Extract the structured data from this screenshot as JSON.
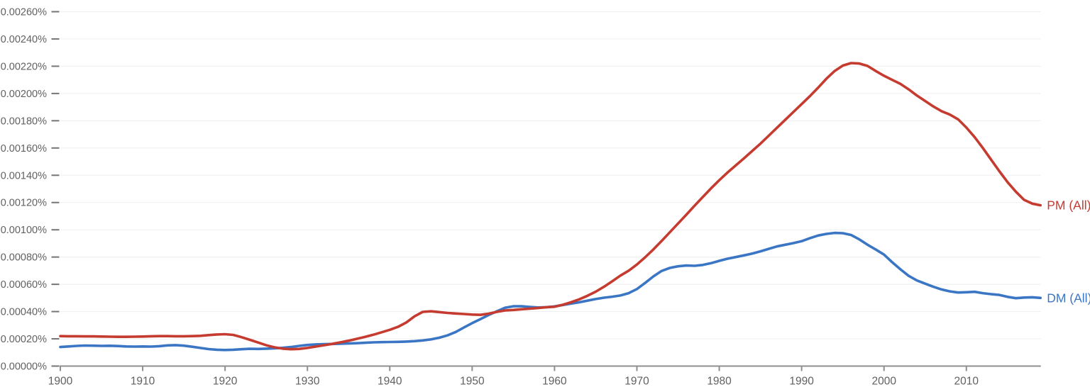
{
  "chart_data": {
    "type": "line",
    "title": "",
    "xlabel": "",
    "ylabel": "",
    "y_unit": "1e-5 percent (value 20 = 0.00020%)",
    "ylim_units": [
      0,
      260
    ],
    "x_range": [
      1900,
      2019
    ],
    "grid": "horizontal-light",
    "legend_position": "line-end-labels-right",
    "y_ticks": [
      "0.00000%",
      "0.00020%",
      "0.00040%",
      "0.00060%",
      "0.00080%",
      "0.00100%",
      "0.00120%",
      "0.00140%",
      "0.00160%",
      "0.00180%",
      "0.00200%",
      "0.00220%",
      "0.00240%",
      "0.00260%"
    ],
    "x_ticks": [
      "1900",
      "1910",
      "1920",
      "1930",
      "1940",
      "1950",
      "1960",
      "1970",
      "1980",
      "1990",
      "2000",
      "2010"
    ],
    "x_tick_years": [
      1900,
      1910,
      1920,
      1930,
      1940,
      1950,
      1960,
      1970,
      1980,
      1990,
      2000,
      2010
    ],
    "years_start": 1900,
    "series": [
      {
        "name": "DM (All)",
        "color": "#3b76c5",
        "values_1e5_percent": [
          14.0,
          14.4,
          14.8,
          15.1,
          15.0,
          14.8,
          14.9,
          14.7,
          14.4,
          14.3,
          14.4,
          14.3,
          14.6,
          15.2,
          15.4,
          15.0,
          14.2,
          13.3,
          12.5,
          12.0,
          11.8,
          12.0,
          12.4,
          12.7,
          12.6,
          12.8,
          13.0,
          13.4,
          14.0,
          14.8,
          15.5,
          15.9,
          16.1,
          16.2,
          16.4,
          16.6,
          16.8,
          17.1,
          17.4,
          17.6,
          17.7,
          17.8,
          18.0,
          18.3,
          18.8,
          19.6,
          20.8,
          22.5,
          25.0,
          28.3,
          31.5,
          34.5,
          37.5,
          40.2,
          42.8,
          43.9,
          43.9,
          43.4,
          43.0,
          43.2,
          43.8,
          44.8,
          45.8,
          46.8,
          48.0,
          49.2,
          50.2,
          50.9,
          51.8,
          53.5,
          56.5,
          61.0,
          65.8,
          69.8,
          72.0,
          73.2,
          73.8,
          73.6,
          74.2,
          75.5,
          77.2,
          78.8,
          80.0,
          81.2,
          82.6,
          84.2,
          86.0,
          87.8,
          89.0,
          90.2,
          91.6,
          93.8,
          95.8,
          97.0,
          97.7,
          97.5,
          96.2,
          93.0,
          89.0,
          85.5,
          81.8,
          76.2,
          71.0,
          66.2,
          62.8,
          60.5,
          58.2,
          56.2,
          54.8,
          54.0,
          54.2,
          54.5,
          53.5,
          52.8,
          52.2,
          50.8,
          49.8,
          50.3,
          50.5,
          50.0
        ]
      },
      {
        "name": "PM (All)",
        "color": "#c53b30",
        "values_1e5_percent": [
          22.0,
          21.9,
          21.9,
          21.8,
          21.8,
          21.7,
          21.6,
          21.5,
          21.5,
          21.6,
          21.7,
          21.9,
          22.0,
          22.0,
          21.9,
          21.9,
          22.0,
          22.2,
          22.7,
          23.2,
          23.4,
          22.9,
          21.2,
          19.3,
          17.3,
          15.3,
          13.8,
          12.8,
          12.4,
          12.6,
          13.3,
          14.3,
          15.3,
          16.3,
          17.4,
          18.6,
          20.0,
          21.4,
          23.0,
          24.8,
          26.6,
          28.8,
          32.0,
          36.5,
          39.8,
          40.2,
          39.6,
          39.0,
          38.6,
          38.2,
          37.8,
          37.6,
          38.5,
          39.8,
          40.8,
          41.2,
          41.7,
          42.1,
          42.6,
          43.2,
          43.5,
          45.0,
          46.8,
          49.0,
          51.6,
          54.6,
          58.2,
          62.2,
          66.4,
          70.0,
          74.5,
          79.8,
          85.6,
          91.8,
          98.2,
          104.6,
          111.0,
          117.6,
          124.0,
          130.4,
          136.4,
          142.0,
          147.2,
          152.4,
          157.8,
          163.2,
          169.0,
          174.8,
          180.6,
          186.4,
          192.2,
          198.0,
          204.2,
          210.8,
          216.5,
          220.5,
          222.3,
          222.0,
          220.2,
          216.5,
          213.0,
          210.0,
          207.0,
          203.0,
          198.5,
          194.5,
          190.5,
          187.0,
          184.5,
          181.0,
          175.0,
          168.0,
          160.0,
          151.5,
          143.0,
          135.0,
          128.0,
          122.0,
          119.2,
          118.0
        ]
      }
    ]
  },
  "colors": {
    "background": "#ffffff",
    "axis_text": "#616161",
    "axis_line": "#8f8f8f",
    "y_tick_dash": "#757575",
    "gridline": "#f0f0f0",
    "series_dm": "#3b76c5",
    "series_pm": "#c53b30"
  }
}
